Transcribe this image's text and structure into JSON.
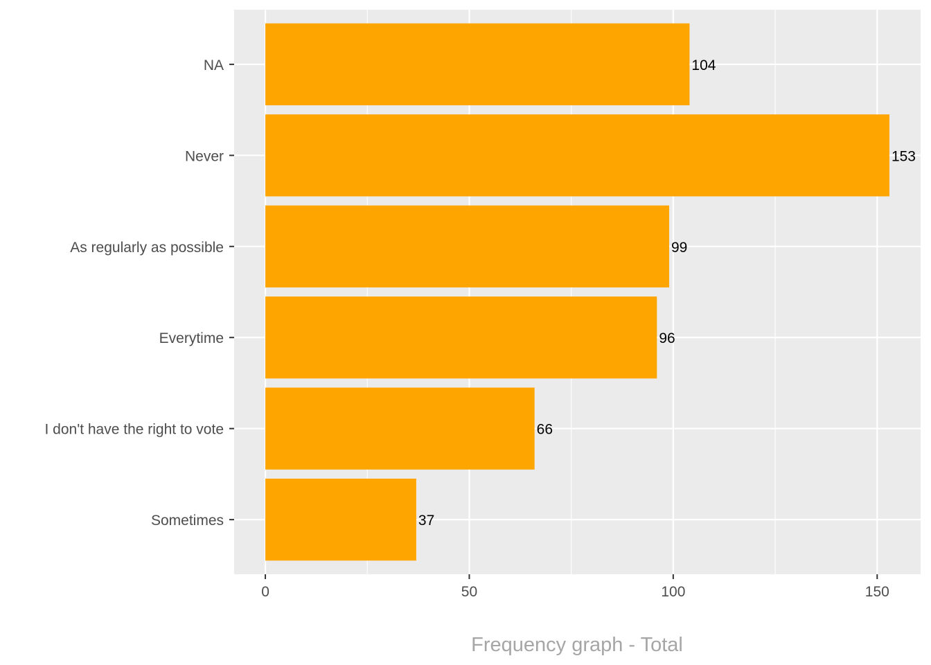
{
  "chart_data": {
    "type": "bar",
    "orientation": "horizontal",
    "categories": [
      "NA",
      "Never",
      "As regularly as possible",
      "Everytime",
      "I don't have the right to vote",
      "Sometimes"
    ],
    "values": [
      104,
      153,
      99,
      96,
      66,
      37
    ],
    "xlabel": "Frequency graph - Total",
    "ylabel": "",
    "xlim": [
      -7.65,
      160.65
    ],
    "xticks": [
      0,
      50,
      100,
      150
    ],
    "grid": true,
    "data_labels": true,
    "colors": {
      "bar": "#FFA500",
      "panel": "#EBEBEB",
      "grid": "#FFFFFF",
      "text": "#4D4D4D",
      "data_label": "#000000",
      "axis_title": "#A6A6A6"
    }
  }
}
